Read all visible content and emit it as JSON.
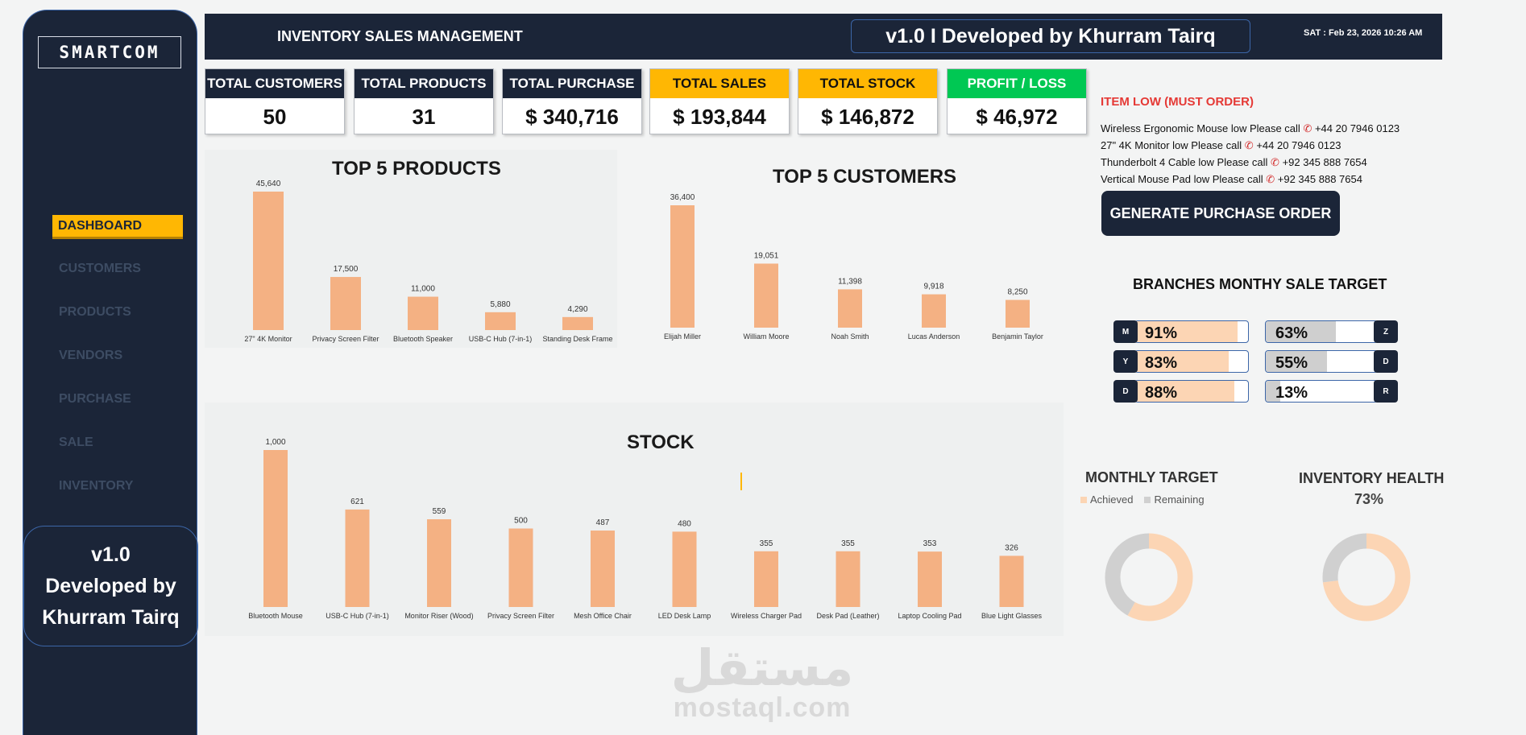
{
  "sidebar": {
    "logo": "SMARTCOM",
    "nav": [
      "DASHBOARD",
      "CUSTOMERS",
      "PRODUCTS",
      "VENDORS",
      "PURCHASE",
      "SALE",
      "INVENTORY"
    ],
    "card_lines": [
      "v1.0",
      "Developed by",
      "Khurram Tairq"
    ]
  },
  "header": {
    "title": "INVENTORY SALES MANAGEMENT",
    "badge": "v1.0 I Developed by Khurram Tairq",
    "datetime": "SAT : Feb 23, 2026  10:26 AM"
  },
  "kpis": [
    {
      "label": "TOTAL CUSTOMERS",
      "value": "50",
      "style": "dark"
    },
    {
      "label": "TOTAL PRODUCTS",
      "value": "31",
      "style": "dark"
    },
    {
      "label": "TOTAL PURCHASE",
      "value": "$ 340,716",
      "style": "dark"
    },
    {
      "label": "TOTAL SALES",
      "value": "$ 193,844",
      "style": "gold"
    },
    {
      "label": "TOTAL STOCK",
      "value": "$ 146,872",
      "style": "gold"
    },
    {
      "label": "PROFIT / LOSS",
      "value": "$ 46,972",
      "style": "green"
    }
  ],
  "chart_data": [
    {
      "type": "bar",
      "title": "TOP 5 PRODUCTS",
      "categories": [
        "27\" 4K Monitor",
        "Privacy Screen Filter",
        "Bluetooth Speaker",
        "USB-C Hub (7-in-1)",
        "Standing Desk Frame"
      ],
      "values": [
        45640,
        17500,
        11000,
        5880,
        4290
      ],
      "value_labels": [
        "45,640",
        "17,500",
        "11,000",
        "5,880",
        "4,290"
      ],
      "bar_color": "#f4b183"
    },
    {
      "type": "bar",
      "title": "TOP 5 CUSTOMERS",
      "categories": [
        "Elijah Miller",
        "William Moore",
        "Noah Smith",
        "Lucas Anderson",
        "Benjamin Taylor"
      ],
      "values": [
        36400,
        19051,
        11398,
        9918,
        8250
      ],
      "value_labels": [
        "36,400",
        "19,051",
        "11,398",
        "9,918",
        "8,250"
      ],
      "bar_color": "#f4b183"
    },
    {
      "type": "bar",
      "title": "STOCK",
      "categories": [
        "Bluetooth Mouse",
        "USB-C Hub (7-in-1)",
        "Monitor Riser (Wood)",
        "Privacy Screen Filter",
        "Mesh Office Chair",
        "LED Desk Lamp",
        "Wireless Charger Pad",
        "Desk Pad (Leather)",
        "Laptop Cooling Pad",
        "Blue Light Glasses"
      ],
      "values": [
        1000,
        621,
        559,
        500,
        487,
        480,
        355,
        355,
        353,
        326
      ],
      "value_labels": [
        "1,000",
        "621",
        "559",
        "500",
        "487",
        "480",
        "355",
        "355",
        "353",
        "326"
      ],
      "bar_color": "#f4b183"
    },
    {
      "type": "pie",
      "title": "MONTHLY TARGET",
      "legend": [
        "Achieved",
        "Remaining"
      ],
      "values": [
        58,
        42
      ],
      "colors": [
        "#fcd5b4",
        "#d0d0d0"
      ]
    },
    {
      "type": "pie",
      "title": "INVENTORY HEALTH",
      "percent_label": "73%",
      "values": [
        73,
        27
      ],
      "colors": [
        "#fcd5b4",
        "#d0d0d0"
      ]
    }
  ],
  "low_stock": {
    "title": "ITEM LOW (MUST ORDER)",
    "items": [
      {
        "text": "Wireless Ergonomic Mouse low Please call",
        "phone": "+44 20 7946 0123"
      },
      {
        "text": "27\" 4K Monitor low Please call",
        "phone": "+44 20 7946 0123"
      },
      {
        "text": "Thunderbolt 4 Cable low Please call",
        "phone": "+92 345 888 7654"
      },
      {
        "text": "Vertical Mouse Pad low Please call",
        "phone": "+92 345 888 7654"
      }
    ],
    "button": "GENERATE PURCHASE ORDER"
  },
  "branches": {
    "title": "BRANCHES MONTHY SALE TARGET",
    "left": [
      {
        "letter": "M",
        "percent": 91,
        "label": "91%"
      },
      {
        "letter": "Y",
        "percent": 83,
        "label": "83%"
      },
      {
        "letter": "D",
        "percent": 88,
        "label": "88%"
      }
    ],
    "right": [
      {
        "letter": "Z",
        "percent": 63,
        "label": "63%"
      },
      {
        "letter": "D",
        "percent": 55,
        "label": "55%"
      },
      {
        "letter": "R",
        "percent": 13,
        "label": "13%"
      }
    ],
    "fill_left": "#fcd5b4",
    "fill_right": "#cfcfcf"
  },
  "watermark": {
    "arabic": "مستقل",
    "latin": "mostaql.com"
  }
}
